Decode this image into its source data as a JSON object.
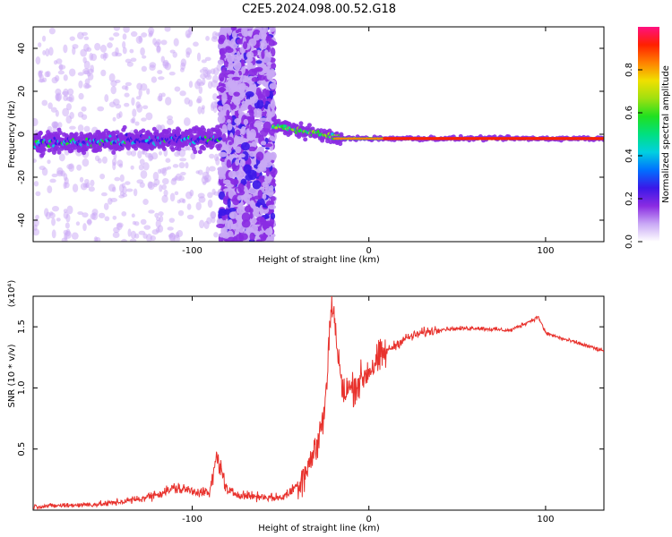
{
  "title": "C2E5.2024.098.00.52.G18",
  "chart_data": [
    {
      "type": "heatmap",
      "xlabel": "Height of straight line (km)",
      "ylabel": "Frequency (Hz)",
      "xlim": [
        -190,
        133
      ],
      "ylim": [
        -50,
        50
      ],
      "xticks": [
        -100,
        0,
        100
      ],
      "yticks": [
        -40,
        -20,
        0,
        20,
        40
      ],
      "colorbar": {
        "label": "Normalized spectral amplitude",
        "range": [
          0,
          1
        ],
        "ticks": [
          0.0,
          0.2,
          0.4,
          0.6,
          0.8
        ],
        "colormap": [
          "#ffffff",
          "#c9a8f5",
          "#8a2be2",
          "#3a18e8",
          "#0070ff",
          "#00d0e0",
          "#00e080",
          "#20e020",
          "#a0e010",
          "#f0e000",
          "#ff8000",
          "#ff2000",
          "#ff1080"
        ]
      },
      "annotations": [
        {
          "feature": "broadband noise",
          "x_range": [
            -84,
            -54
          ]
        },
        {
          "feature": "signal track",
          "x_range": [
            -190,
            133
          ],
          "frequency": -2
        }
      ]
    },
    {
      "type": "line",
      "xlabel": "Height of straight line (km)",
      "ylabel": "SNR (10 * v/v)",
      "y_multiplier": "(x10⁴)",
      "xlim": [
        -190,
        133
      ],
      "ylim": [
        0,
        1.75
      ],
      "xticks": [
        -100,
        0,
        100
      ],
      "yticks": [
        0.5,
        1.0,
        1.5
      ],
      "series": [
        {
          "color": "#e8322d",
          "points": [
            [
              -190,
              0.03
            ],
            [
              -170,
              0.04
            ],
            [
              -150,
              0.05
            ],
            [
              -130,
              0.09
            ],
            [
              -120,
              0.13
            ],
            [
              -110,
              0.18
            ],
            [
              -100,
              0.16
            ],
            [
              -90,
              0.14
            ],
            [
              -86,
              0.45
            ],
            [
              -80,
              0.15
            ],
            [
              -70,
              0.12
            ],
            [
              -60,
              0.11
            ],
            [
              -50,
              0.1
            ],
            [
              -45,
              0.14
            ],
            [
              -40,
              0.22
            ],
            [
              -35,
              0.35
            ],
            [
              -30,
              0.5
            ],
            [
              -25,
              0.8
            ],
            [
              -21,
              1.75
            ],
            [
              -15,
              0.95
            ],
            [
              -10,
              1.0
            ],
            [
              -5,
              1.05
            ],
            [
              0,
              1.15
            ],
            [
              5,
              1.22
            ],
            [
              10,
              1.3
            ],
            [
              20,
              1.4
            ],
            [
              30,
              1.45
            ],
            [
              40,
              1.48
            ],
            [
              60,
              1.49
            ],
            [
              80,
              1.47
            ],
            [
              96,
              1.58
            ],
            [
              100,
              1.45
            ],
            [
              110,
              1.4
            ],
            [
              120,
              1.36
            ],
            [
              133,
              1.3
            ]
          ]
        }
      ]
    }
  ]
}
